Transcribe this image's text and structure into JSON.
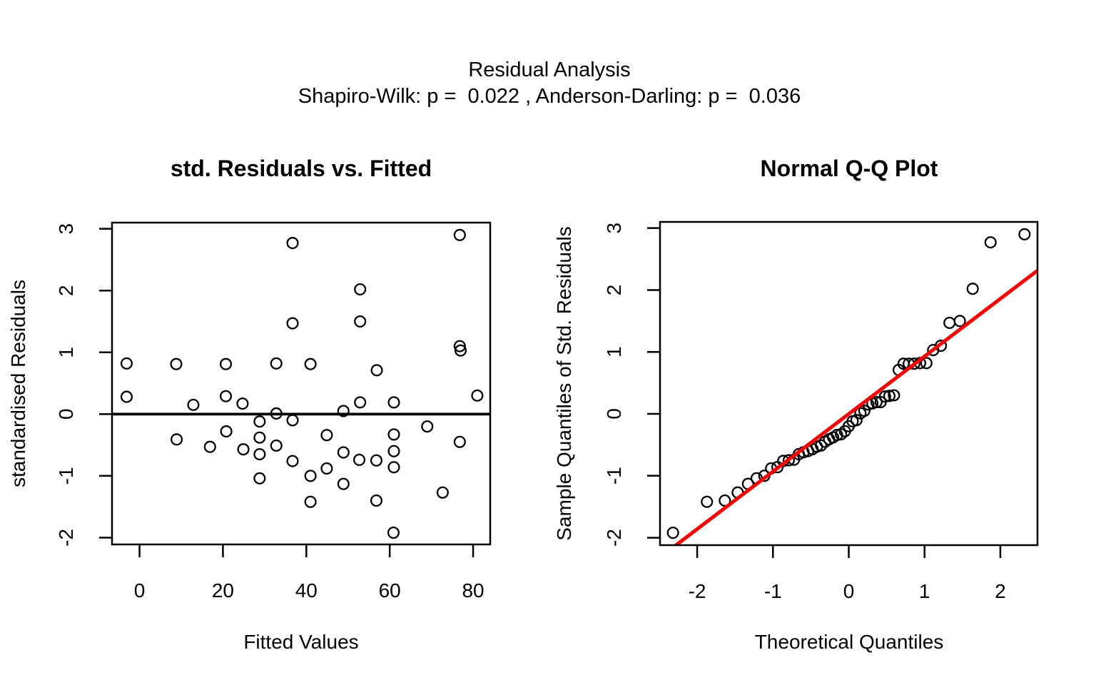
{
  "header": {
    "title": "Residual Analysis",
    "subtitle": "Shapiro-Wilk: p =  0.022 , Anderson-Darling: p =  0.036",
    "shapiro_wilk_p": "0.022",
    "anderson_darling_p": "0.036"
  },
  "chart_data": [
    {
      "type": "scatter",
      "title": "std. Residuals vs. Fitted",
      "xlabel": "Fitted Values",
      "ylabel": "standardised Residuals",
      "xlim": [
        -6.6,
        84.1
      ],
      "ylim": [
        -2.11,
        3.1
      ],
      "xticks": [
        0,
        20,
        40,
        60,
        80
      ],
      "yticks": [
        -2,
        -1,
        0,
        1,
        2,
        3
      ],
      "grid": false,
      "legend": null,
      "marker": "open-circle",
      "marker_color": "#000000",
      "hline_y": 0,
      "hline_color": "#000000",
      "points": [
        [
          -3.1,
          0.82
        ],
        [
          8.8,
          0.81
        ],
        [
          20.7,
          0.81
        ],
        [
          32.8,
          0.82
        ],
        [
          41,
          0.81
        ],
        [
          36.7,
          2.77
        ],
        [
          36.7,
          1.47
        ],
        [
          52.9,
          2.02
        ],
        [
          52.9,
          1.5
        ],
        [
          56.9,
          0.71
        ],
        [
          76.8,
          2.9
        ],
        [
          76.8,
          1.1
        ],
        [
          77,
          1.03
        ],
        [
          -3.1,
          0.28
        ],
        [
          12.9,
          0.15
        ],
        [
          20.7,
          0.29
        ],
        [
          24.7,
          0.17
        ],
        [
          32.8,
          0.01
        ],
        [
          28.8,
          -0.12
        ],
        [
          36.7,
          -0.1
        ],
        [
          8.9,
          -0.41
        ],
        [
          20.8,
          -0.28
        ],
        [
          16.9,
          -0.53
        ],
        [
          24.9,
          -0.57
        ],
        [
          28.8,
          -0.38
        ],
        [
          28.8,
          -0.65
        ],
        [
          32.8,
          -0.51
        ],
        [
          36.7,
          -0.76
        ],
        [
          28.8,
          -1.04
        ],
        [
          48.9,
          0.05
        ],
        [
          52.9,
          0.19
        ],
        [
          61,
          0.19
        ],
        [
          81,
          0.3
        ],
        [
          69,
          -0.2
        ],
        [
          44.9,
          -0.34
        ],
        [
          61,
          -0.33
        ],
        [
          76.8,
          -0.45
        ],
        [
          48.9,
          -0.62
        ],
        [
          52.7,
          -0.74
        ],
        [
          56.8,
          -0.75
        ],
        [
          61,
          -0.6
        ],
        [
          61,
          -0.86
        ],
        [
          44.9,
          -0.88
        ],
        [
          41,
          -1.0
        ],
        [
          48.9,
          -1.13
        ],
        [
          41,
          -1.42
        ],
        [
          56.8,
          -1.4
        ],
        [
          72.7,
          -1.27
        ],
        [
          60.9,
          -1.92
        ]
      ]
    },
    {
      "type": "scatter",
      "title": "Normal Q-Q Plot",
      "xlabel": "Theoretical Quantiles",
      "ylabel": "Sample Quantiles of Std. Residuals",
      "xlim": [
        -2.49,
        2.49
      ],
      "ylim": [
        -2.12,
        3.1
      ],
      "xticks": [
        -2,
        -1,
        0,
        1,
        2
      ],
      "yticks": [
        -2,
        -1,
        0,
        1,
        2,
        3
      ],
      "grid": false,
      "legend": null,
      "marker": "open-circle",
      "marker_color": "#000000",
      "refline": {
        "slope": 0.93,
        "intercept": 0,
        "color": "#ff0000"
      },
      "points": [
        [
          -2.319,
          -1.92
        ],
        [
          -1.871,
          -1.42
        ],
        [
          -1.635,
          -1.4
        ],
        [
          -1.465,
          -1.27
        ],
        [
          -1.329,
          -1.13
        ],
        [
          -1.215,
          -1.04
        ],
        [
          -1.114,
          -1.0
        ],
        [
          -1.024,
          -0.88
        ],
        [
          -0.941,
          -0.86
        ],
        [
          -0.864,
          -0.76
        ],
        [
          -0.792,
          -0.75
        ],
        [
          -0.723,
          -0.74
        ],
        [
          -0.659,
          -0.65
        ],
        [
          -0.596,
          -0.62
        ],
        [
          -0.536,
          -0.6
        ],
        [
          -0.478,
          -0.57
        ],
        [
          -0.421,
          -0.53
        ],
        [
          -0.366,
          -0.51
        ],
        [
          -0.312,
          -0.45
        ],
        [
          -0.259,
          -0.41
        ],
        [
          -0.206,
          -0.38
        ],
        [
          -0.154,
          -0.34
        ],
        [
          -0.102,
          -0.33
        ],
        [
          -0.051,
          -0.28
        ],
        [
          0.0,
          -0.2
        ],
        [
          0.051,
          -0.12
        ],
        [
          0.102,
          -0.1
        ],
        [
          0.154,
          0.01
        ],
        [
          0.206,
          0.05
        ],
        [
          0.259,
          0.15
        ],
        [
          0.312,
          0.17
        ],
        [
          0.366,
          0.19
        ],
        [
          0.421,
          0.19
        ],
        [
          0.478,
          0.28
        ],
        [
          0.536,
          0.29
        ],
        [
          0.596,
          0.3
        ],
        [
          0.659,
          0.71
        ],
        [
          0.723,
          0.81
        ],
        [
          0.792,
          0.81
        ],
        [
          0.864,
          0.81
        ],
        [
          0.941,
          0.82
        ],
        [
          1.024,
          0.82
        ],
        [
          1.114,
          1.03
        ],
        [
          1.215,
          1.1
        ],
        [
          1.329,
          1.47
        ],
        [
          1.465,
          1.5
        ],
        [
          1.635,
          2.02
        ],
        [
          1.871,
          2.77
        ],
        [
          2.319,
          2.9
        ]
      ]
    }
  ]
}
